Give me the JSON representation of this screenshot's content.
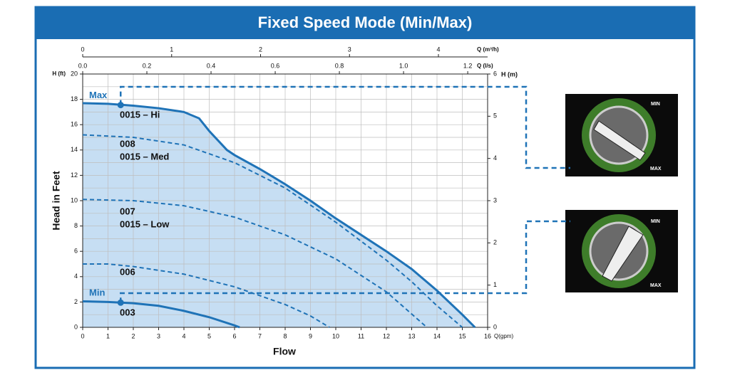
{
  "chart_data": {
    "type": "line",
    "title": "Fixed Speed Mode (Min/Max)",
    "xlabel": "Flow",
    "ylabel": "Head in Feet",
    "y_unit": "H (ft)",
    "y2_unit": "H (m)",
    "x_unit": "Q(gpm)",
    "xlim": [
      0,
      16
    ],
    "xticks": [
      0,
      1,
      2,
      3,
      4,
      5,
      6,
      7,
      8,
      9,
      10,
      11,
      12,
      13,
      14,
      15,
      16
    ],
    "ylim": [
      0,
      20
    ],
    "yticks": [
      0,
      2,
      4,
      6,
      8,
      10,
      12,
      14,
      16,
      18,
      20
    ],
    "y2lim": [
      0,
      6
    ],
    "y2ticks": [
      0,
      1,
      2,
      3,
      4,
      5,
      6
    ],
    "top_axes": [
      {
        "unit": "Q (m³/h)",
        "lim": [
          0,
          4.553
        ],
        "ticks": [
          0,
          1,
          2,
          3,
          4
        ]
      },
      {
        "unit": "Q (l/s)",
        "lim": [
          0,
          1.262
        ],
        "ticks": [
          {
            "value": 0,
            "label": "0.0"
          },
          0.2,
          0.4,
          0.6,
          0.8,
          {
            "value": 1,
            "label": "1.0"
          },
          1.2
        ]
      }
    ],
    "grid": true,
    "fill_color": "#c6def3",
    "series": [
      {
        "name": "0015 – Hi",
        "labels": [
          "0015 – Hi"
        ],
        "color": "#1f73b7",
        "dashed": false,
        "x": [
          0,
          1,
          2,
          3,
          4,
          4.6,
          5,
          5.7,
          6,
          7,
          8,
          9,
          10,
          11,
          12,
          13,
          14,
          15,
          15.5
        ],
        "values": [
          17.7,
          17.65,
          17.5,
          17.3,
          17.0,
          16.5,
          15.5,
          14.0,
          13.6,
          12.5,
          11.3,
          10.0,
          8.6,
          7.3,
          6.0,
          4.6,
          2.9,
          1.0,
          0
        ]
      },
      {
        "name": "0015 – Med",
        "labels": [
          "008",
          "0015 – Med"
        ],
        "color": "#1f73b7",
        "dashed": true,
        "x": [
          0,
          2,
          4,
          6,
          8,
          10,
          12,
          13,
          14,
          15
        ],
        "values": [
          15.2,
          15.0,
          14.4,
          13.0,
          11.0,
          8.3,
          5.3,
          3.6,
          1.7,
          0
        ]
      },
      {
        "name": "0015 – Low",
        "labels": [
          "007",
          "0015 – Low"
        ],
        "color": "#1f73b7",
        "dashed": true,
        "x": [
          0,
          2,
          4,
          6,
          8,
          10,
          12,
          13.6
        ],
        "values": [
          10.1,
          10.0,
          9.6,
          8.7,
          7.3,
          5.4,
          2.8,
          0
        ]
      },
      {
        "name": "006",
        "labels": [
          "006"
        ],
        "color": "#1f73b7",
        "dashed": true,
        "x": [
          0,
          1,
          2,
          4,
          6,
          8,
          9,
          9.75
        ],
        "values": [
          5.0,
          5.0,
          4.8,
          4.2,
          3.2,
          1.8,
          0.9,
          0
        ]
      },
      {
        "name": "003",
        "labels": [
          "003"
        ],
        "color": "#1f73b7",
        "dashed": false,
        "x": [
          0,
          1,
          2,
          3,
          4,
          5,
          6,
          6.2
        ],
        "values": [
          2.05,
          2.0,
          1.9,
          1.7,
          1.3,
          0.8,
          0.15,
          0
        ]
      }
    ],
    "markers": [
      {
        "label": "Max",
        "x": 1.5,
        "y": 17.55
      },
      {
        "label": "Min",
        "x": 1.5,
        "y": 1.95
      }
    ],
    "dials": [
      {
        "min_label": "MIN",
        "max_label": "MAX"
      },
      {
        "min_label": "MIN",
        "max_label": "MAX"
      }
    ]
  }
}
